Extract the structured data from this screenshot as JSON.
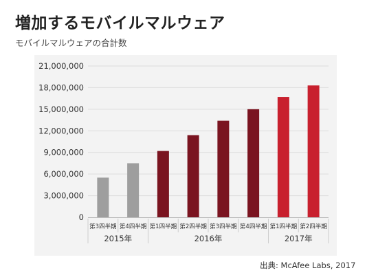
{
  "header": {
    "title": "増加するモバイルマルウェア",
    "subtitle": "モバイルマルウェアの合計数"
  },
  "footer": {
    "source": "出典: McAfee Labs, 2017"
  },
  "chart_data": {
    "type": "bar",
    "title": "増加するモバイルマルウェア",
    "subtitle": "モバイルマルウェアの合計数",
    "xlabel": "",
    "ylabel": "",
    "ylim": [
      0,
      21000000
    ],
    "yticks": [
      0,
      3000000,
      6000000,
      9000000,
      12000000,
      15000000,
      18000000,
      21000000
    ],
    "ytick_labels": [
      "0",
      "3,000,000",
      "6,000,000",
      "9,000,000",
      "12,000,000",
      "15,000,000",
      "18,000,000",
      "21,000,000"
    ],
    "grid": true,
    "categories": [
      "第3四半期",
      "第4四半期",
      "第1四半期",
      "第2四半期",
      "第3四半期",
      "第4四半期",
      "第1四半期",
      "第2四半期"
    ],
    "years": [
      {
        "label": "2015年",
        "count": 2
      },
      {
        "label": "2016年",
        "count": 4
      },
      {
        "label": "2017年",
        "count": 2
      }
    ],
    "values": [
      5500000,
      7500000,
      9200000,
      11400000,
      13400000,
      15000000,
      16700000,
      18300000
    ],
    "colors": [
      "#9e9e9e",
      "#9e9e9e",
      "#7a1420",
      "#7a1420",
      "#7a1420",
      "#7a1420",
      "#c8202e",
      "#c8202e"
    ]
  }
}
